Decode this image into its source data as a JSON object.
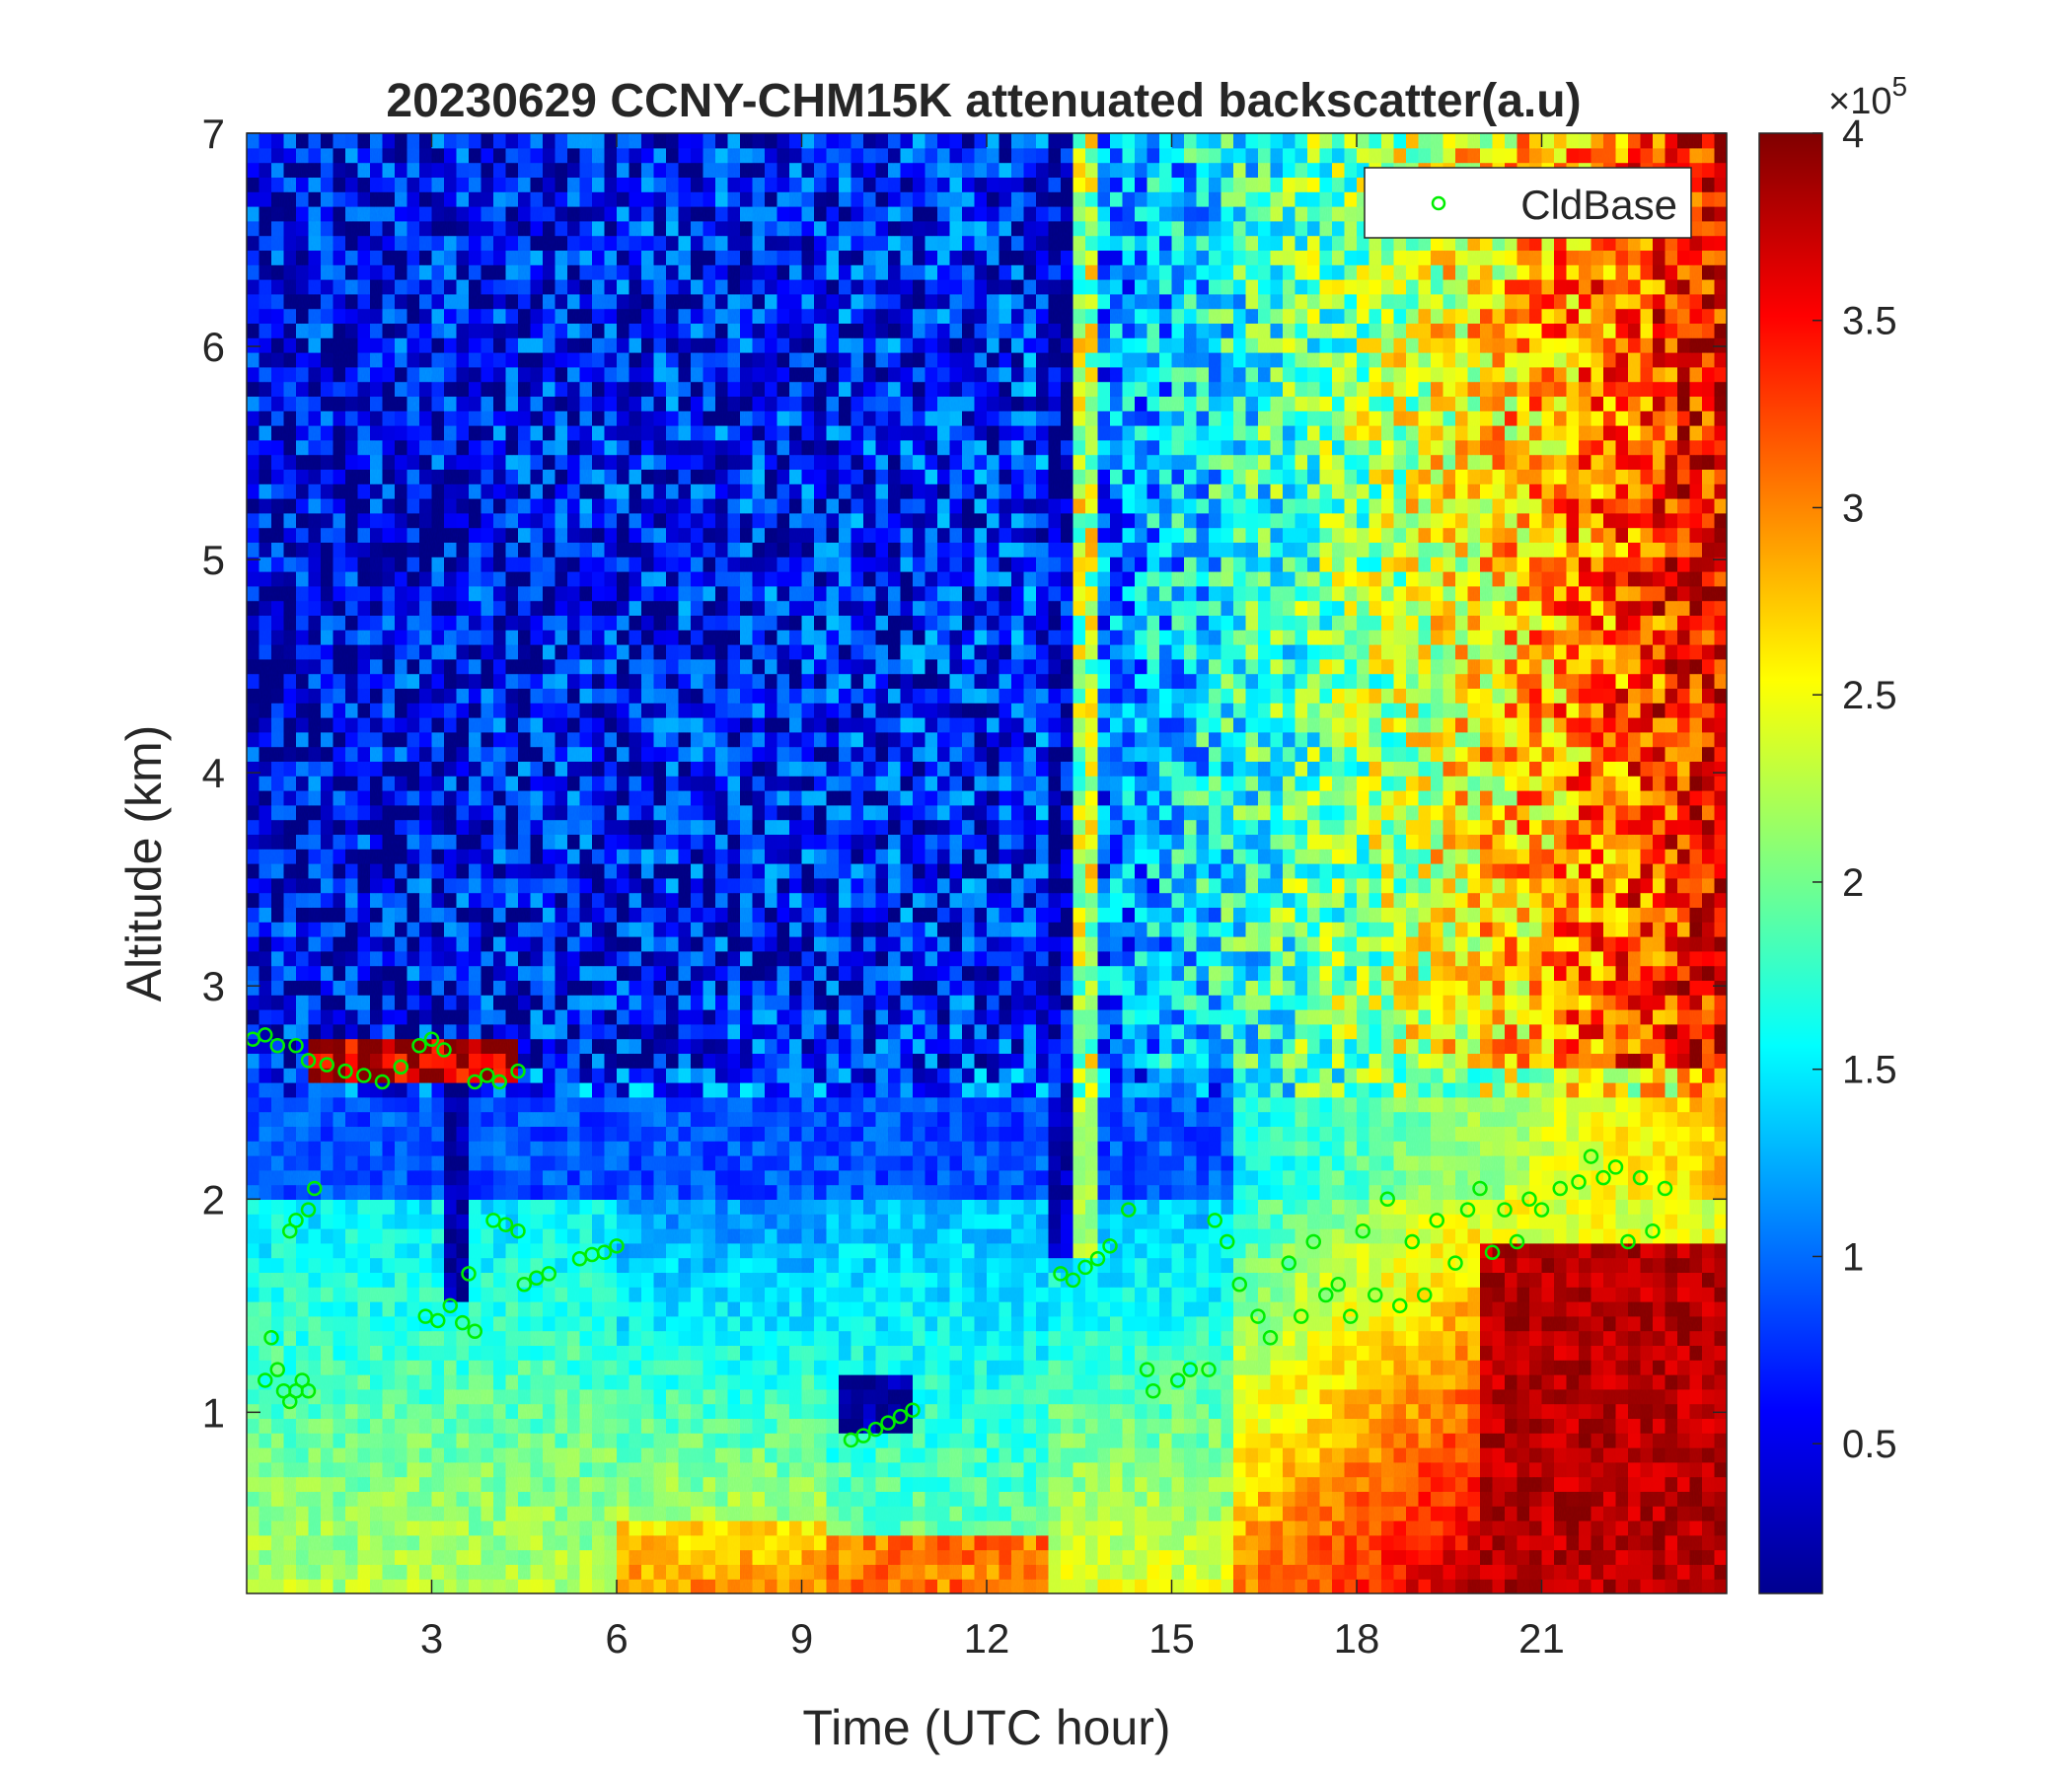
{
  "chart_data": {
    "type": "heatmap",
    "title": "20230629 CCNY-CHM15K attenuated backscatter(a.u)",
    "xlabel": "Time (UTC hour)",
    "ylabel": "Altitude (km)",
    "xlim": [
      0,
      24
    ],
    "ylim": [
      0.15,
      7
    ],
    "x_ticks": [
      3,
      6,
      9,
      12,
      15,
      18,
      21
    ],
    "x_tick_labels": [
      "3",
      "6",
      "9",
      "12",
      "15",
      "18",
      "21"
    ],
    "y_ticks": [
      1,
      2,
      3,
      4,
      5,
      6,
      7
    ],
    "y_tick_labels": [
      "1",
      "2",
      "3",
      "4",
      "5",
      "6",
      "7"
    ],
    "colorbar": {
      "colormap": "jet",
      "clim": [
        10000,
        400000
      ],
      "ticks": [
        50000,
        100000,
        150000,
        200000,
        250000,
        300000,
        350000,
        400000
      ],
      "tick_labels": [
        "0.5",
        "1",
        "1.5",
        "2",
        "2.5",
        "3",
        "3.5",
        "4"
      ],
      "exponent_label": "×10",
      "exponent": "5"
    },
    "legend": {
      "placement": "top-right",
      "entries": [
        "CldBase"
      ]
    },
    "series": [
      {
        "name": "CldBase",
        "marker": "circle",
        "color": "#00ee00",
        "points": [
          [
            0.1,
            2.75
          ],
          [
            0.3,
            2.77
          ],
          [
            0.5,
            2.72
          ],
          [
            0.8,
            2.72
          ],
          [
            0.3,
            1.15
          ],
          [
            0.4,
            1.35
          ],
          [
            0.5,
            1.2
          ],
          [
            0.6,
            1.1
          ],
          [
            0.7,
            1.05
          ],
          [
            0.8,
            1.1
          ],
          [
            0.9,
            1.15
          ],
          [
            1.0,
            1.1
          ],
          [
            0.7,
            1.85
          ],
          [
            0.8,
            1.9
          ],
          [
            1.0,
            1.95
          ],
          [
            1.1,
            2.05
          ],
          [
            1.0,
            2.65
          ],
          [
            1.3,
            2.63
          ],
          [
            1.6,
            2.6
          ],
          [
            1.9,
            2.58
          ],
          [
            2.2,
            2.55
          ],
          [
            2.5,
            2.62
          ],
          [
            2.8,
            2.72
          ],
          [
            3.0,
            2.75
          ],
          [
            3.2,
            2.7
          ],
          [
            2.9,
            1.45
          ],
          [
            3.1,
            1.43
          ],
          [
            3.3,
            1.5
          ],
          [
            3.5,
            1.42
          ],
          [
            3.7,
            1.38
          ],
          [
            3.6,
            1.65
          ],
          [
            3.7,
            2.55
          ],
          [
            3.9,
            2.58
          ],
          [
            4.1,
            2.55
          ],
          [
            4.4,
            2.6
          ],
          [
            4.0,
            1.9
          ],
          [
            4.2,
            1.88
          ],
          [
            4.4,
            1.85
          ],
          [
            4.5,
            1.6
          ],
          [
            4.7,
            1.63
          ],
          [
            4.9,
            1.65
          ],
          [
            5.4,
            1.72
          ],
          [
            5.6,
            1.74
          ],
          [
            5.8,
            1.75
          ],
          [
            6.0,
            1.78
          ],
          [
            9.8,
            0.87
          ],
          [
            10.0,
            0.89
          ],
          [
            10.2,
            0.92
          ],
          [
            10.4,
            0.95
          ],
          [
            10.6,
            0.98
          ],
          [
            10.8,
            1.01
          ],
          [
            13.2,
            1.65
          ],
          [
            13.4,
            1.62
          ],
          [
            13.6,
            1.68
          ],
          [
            13.8,
            1.72
          ],
          [
            14.0,
            1.78
          ],
          [
            14.3,
            1.95
          ],
          [
            14.6,
            1.2
          ],
          [
            14.7,
            1.1
          ],
          [
            15.1,
            1.15
          ],
          [
            15.3,
            1.2
          ],
          [
            15.6,
            1.2
          ],
          [
            15.7,
            1.9
          ],
          [
            15.9,
            1.8
          ],
          [
            16.1,
            1.6
          ],
          [
            16.4,
            1.45
          ],
          [
            16.6,
            1.35
          ],
          [
            16.9,
            1.7
          ],
          [
            17.1,
            1.45
          ],
          [
            17.3,
            1.8
          ],
          [
            17.5,
            1.55
          ],
          [
            17.7,
            1.6
          ],
          [
            17.9,
            1.45
          ],
          [
            18.1,
            1.85
          ],
          [
            18.3,
            1.55
          ],
          [
            18.5,
            2.0
          ],
          [
            18.7,
            1.5
          ],
          [
            18.9,
            1.8
          ],
          [
            19.1,
            1.55
          ],
          [
            19.3,
            1.9
          ],
          [
            19.6,
            1.7
          ],
          [
            19.8,
            1.95
          ],
          [
            20.0,
            2.05
          ],
          [
            20.2,
            1.75
          ],
          [
            20.4,
            1.95
          ],
          [
            20.6,
            1.8
          ],
          [
            20.8,
            2.0
          ],
          [
            21.0,
            1.95
          ],
          [
            21.3,
            2.05
          ],
          [
            21.6,
            2.08
          ],
          [
            21.8,
            2.2
          ],
          [
            22.0,
            2.1
          ],
          [
            22.2,
            2.15
          ],
          [
            22.4,
            1.8
          ],
          [
            22.6,
            2.1
          ],
          [
            22.8,
            1.85
          ],
          [
            23.0,
            2.05
          ]
        ]
      }
    ]
  }
}
